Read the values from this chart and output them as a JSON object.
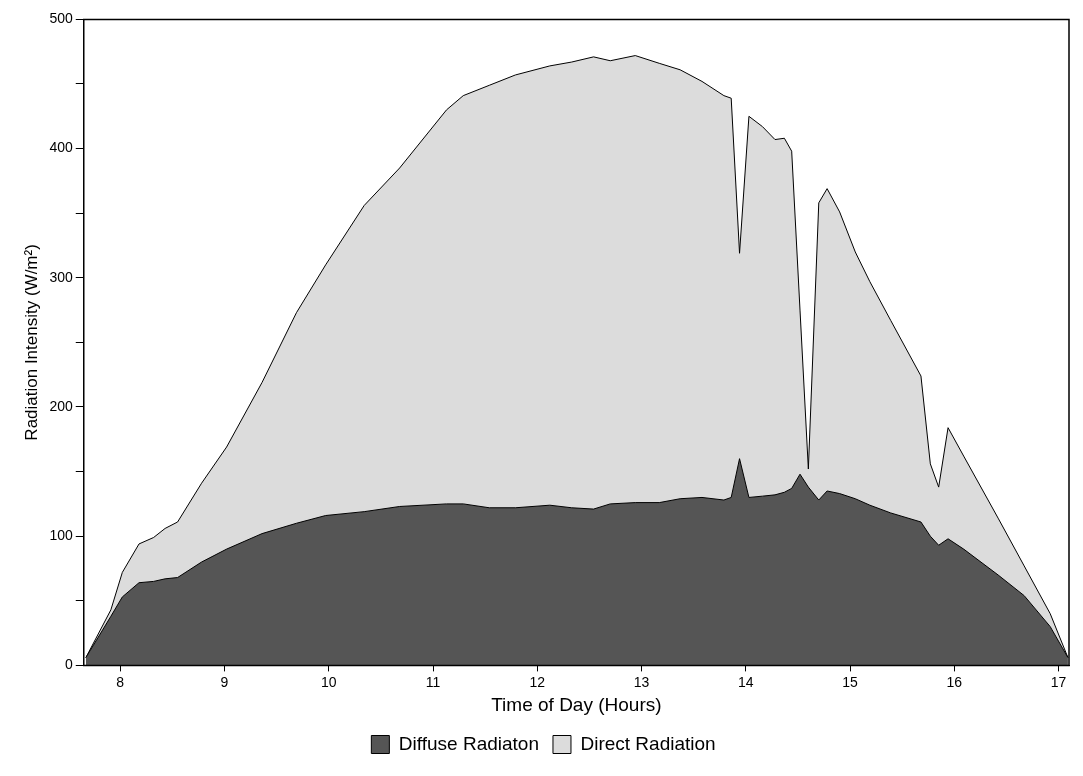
{
  "chart_data": {
    "type": "area",
    "stacked": true,
    "xlabel": "Time of Day (Hours)",
    "ylabel": "Radiation Intensity (W/m²)",
    "x": [
      7.67,
      7.91,
      8.02,
      8.18,
      8.32,
      8.43,
      8.55,
      8.78,
      9.02,
      9.36,
      9.69,
      9.97,
      10.34,
      10.68,
      11.13,
      11.29,
      11.54,
      11.79,
      12.12,
      12.33,
      12.54,
      12.7,
      12.94,
      13.17,
      13.37,
      13.58,
      13.79,
      13.86,
      13.94,
      14.03,
      14.16,
      14.28,
      14.37,
      14.44,
      14.52,
      14.6,
      14.7,
      14.78,
      14.9,
      15.05,
      15.19,
      15.39,
      15.68,
      15.77,
      15.85,
      15.94,
      16.09,
      16.42,
      16.67,
      16.92,
      17.09
    ],
    "series": [
      {
        "name": "Diffuse Radiaton",
        "color": "#555555",
        "values": [
          6,
          38,
          53,
          64,
          65,
          67,
          68,
          80,
          90,
          102,
          110,
          116,
          119,
          123,
          125,
          125,
          122,
          122,
          124,
          122,
          121,
          125,
          126,
          126,
          129,
          130,
          128,
          130,
          160,
          130,
          131,
          132,
          134,
          137,
          148,
          138,
          128,
          135,
          133,
          129,
          124,
          118,
          111,
          100,
          93,
          98,
          90,
          70,
          54,
          30,
          6
        ]
      },
      {
        "name": "Direct Radiation",
        "color": "#dcdcdc",
        "values": [
          0,
          5,
          19,
          30,
          34,
          39,
          43,
          61,
          79,
          117,
          163,
          194,
          237,
          262,
          305,
          316,
          327,
          335,
          340,
          345,
          350,
          343,
          346,
          340,
          332,
          322,
          313,
          309,
          159,
          295,
          286,
          275,
          274,
          261,
          127,
          14,
          230,
          234,
          218,
          191,
          173,
          149,
          113,
          56,
          45,
          86,
          72,
          44,
          23,
          10,
          0
        ]
      }
    ],
    "xlim": [
      7.65,
      17.1
    ],
    "xticks": [
      8,
      9,
      10,
      11,
      12,
      13,
      14,
      15,
      16,
      17
    ],
    "ylim": [
      0,
      500
    ],
    "yticks": [
      0,
      {
        "value": 50,
        "label": null
      },
      100,
      {
        "value": 150,
        "label": null
      },
      200,
      {
        "value": 250,
        "label": null
      },
      300,
      {
        "value": 350,
        "label": null
      },
      400,
      {
        "value": 450,
        "label": null
      },
      500
    ],
    "grid": false,
    "legend": "bottom"
  }
}
